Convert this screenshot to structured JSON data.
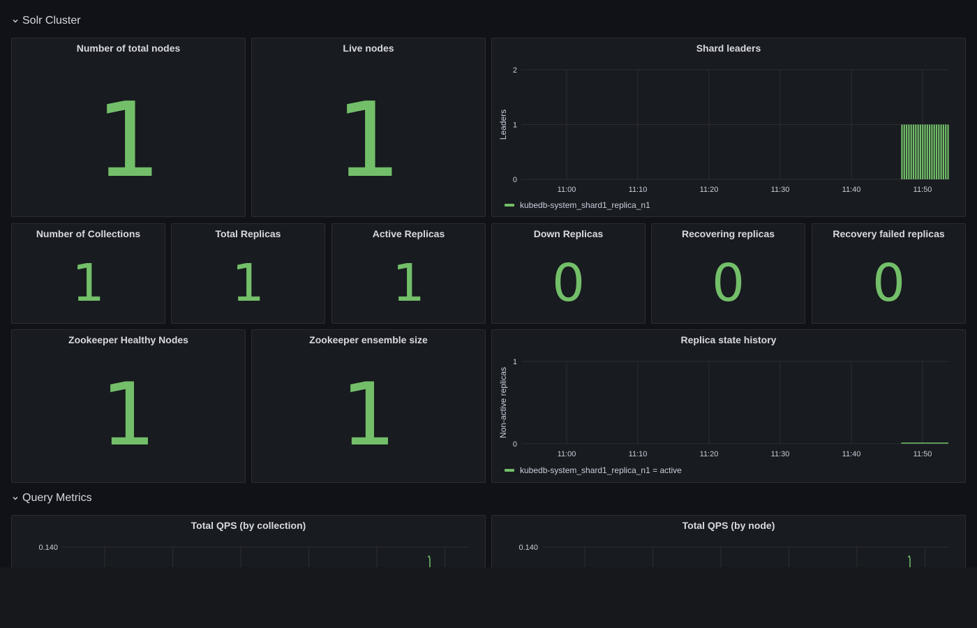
{
  "rows": {
    "solr_cluster": "Solr Cluster",
    "query_metrics": "Query Metrics"
  },
  "stats": {
    "total_nodes": {
      "title": "Number of total nodes",
      "value": "1"
    },
    "live_nodes": {
      "title": "Live nodes",
      "value": "1"
    },
    "collections": {
      "title": "Number of Collections",
      "value": "1"
    },
    "total_replicas": {
      "title": "Total Replicas",
      "value": "1"
    },
    "active_replicas": {
      "title": "Active Replicas",
      "value": "1"
    },
    "down_replicas": {
      "title": "Down Replicas",
      "value": "0"
    },
    "recovering_replicas": {
      "title": "Recovering replicas",
      "value": "0"
    },
    "recovery_failed": {
      "title": "Recovery failed replicas",
      "value": "0"
    },
    "zk_healthy": {
      "title": "Zookeeper Healthy Nodes",
      "value": "1"
    },
    "zk_ensemble": {
      "title": "Zookeeper ensemble size",
      "value": "1"
    }
  },
  "colors": {
    "accent": "#73bf69",
    "panel_bg": "#181b1f",
    "page_bg": "#111217"
  },
  "chart_data": [
    {
      "type": "bar",
      "title": "Shard leaders",
      "xlabel": "",
      "ylabel": "Leaders",
      "x_ticks": [
        "11:00",
        "11:10",
        "11:20",
        "11:30",
        "11:40",
        "11:50"
      ],
      "y_ticks": [
        "0",
        "1",
        "2"
      ],
      "ylim": [
        0,
        2
      ],
      "grid": true,
      "legend_position": "bottom-left",
      "series": [
        {
          "name": "kubedb-system_shard1_replica_n1",
          "x_range": [
            "11:47",
            "11:56"
          ],
          "value": 1
        }
      ]
    },
    {
      "type": "line",
      "title": "Replica state history",
      "xlabel": "",
      "ylabel": "Non-active replicas",
      "x_ticks": [
        "11:00",
        "11:10",
        "11:20",
        "11:30",
        "11:40",
        "11:50"
      ],
      "y_ticks": [
        "0",
        "1"
      ],
      "ylim": [
        0,
        1
      ],
      "grid": true,
      "legend_position": "bottom-left",
      "series": [
        {
          "name": "kubedb-system_shard1_replica_n1 = active",
          "x_range": [
            "11:47",
            "11:56"
          ],
          "value": 0
        }
      ]
    },
    {
      "type": "line",
      "title": "Total QPS (by collection)",
      "y_ticks": [
        "0.140"
      ],
      "grid": true,
      "series": [
        {
          "x_range": [
            "11:47",
            "11:48"
          ],
          "value": 0.14
        }
      ]
    },
    {
      "type": "line",
      "title": "Total QPS (by node)",
      "y_ticks": [
        "0.140"
      ],
      "grid": true,
      "series": [
        {
          "x_range": [
            "11:47",
            "11:48"
          ],
          "value": 0.14
        }
      ]
    }
  ]
}
